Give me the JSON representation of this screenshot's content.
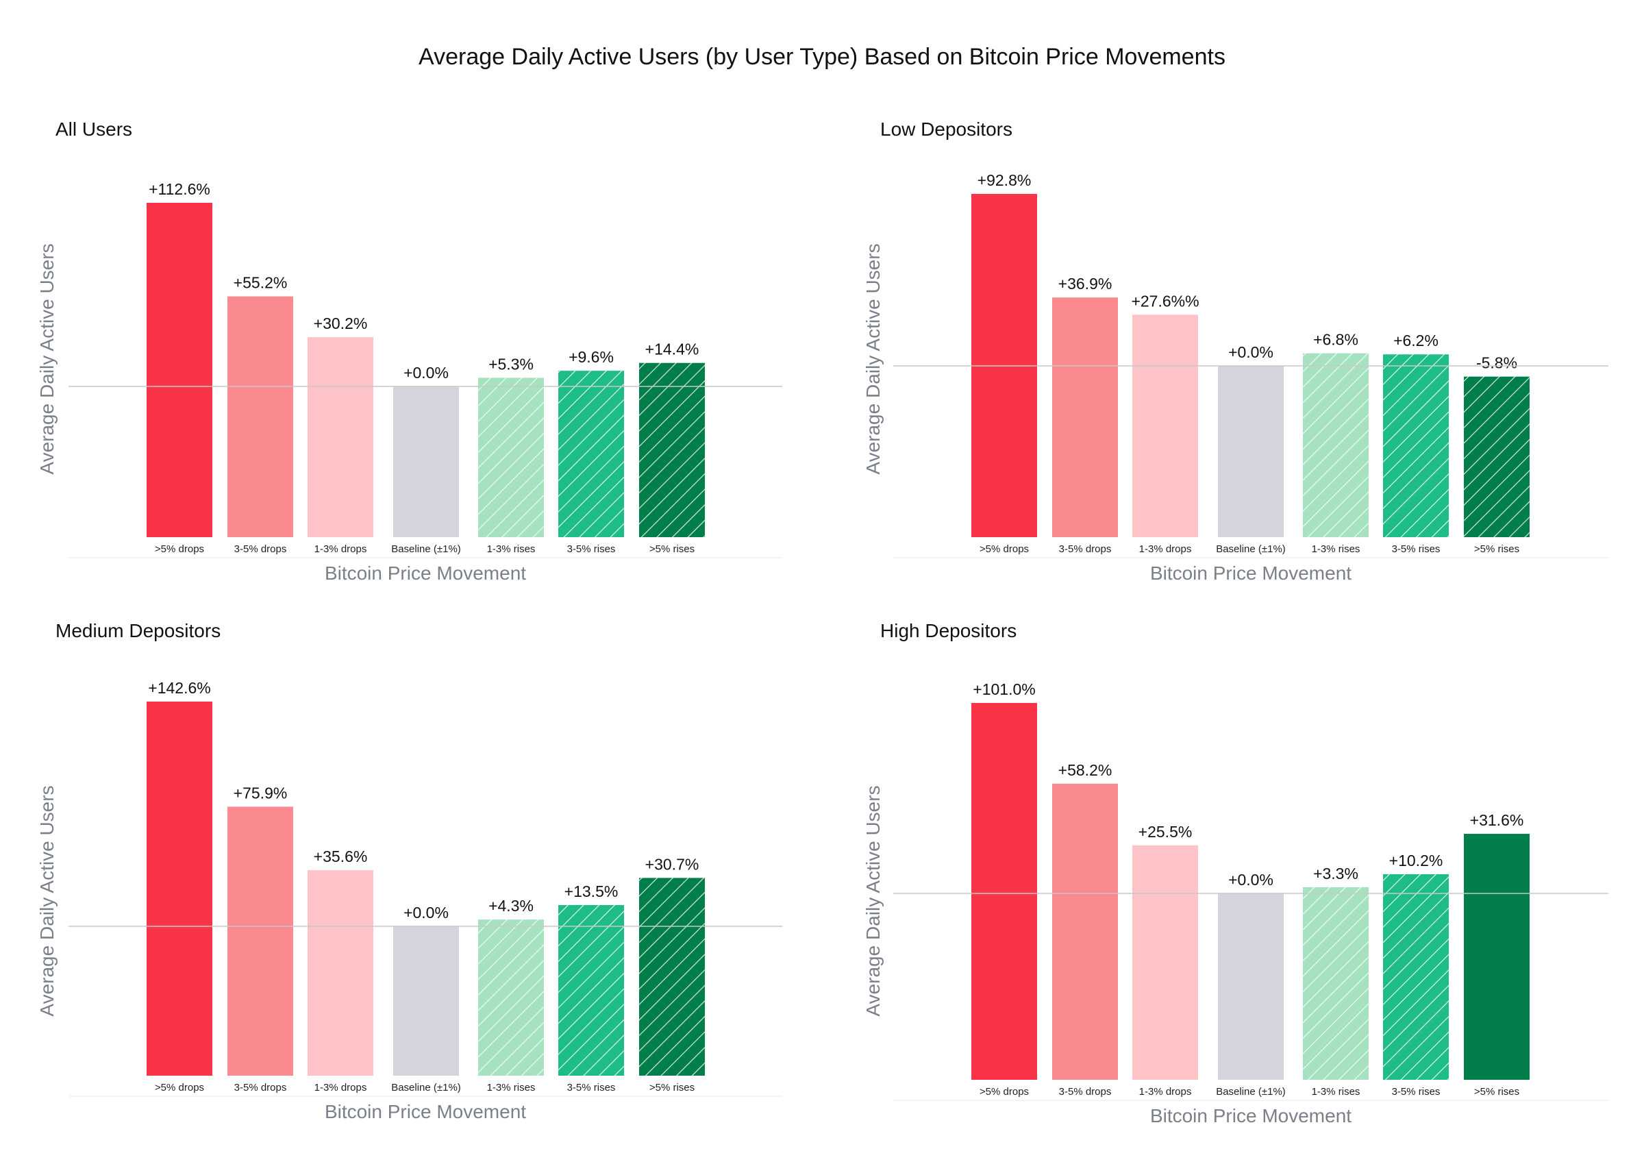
{
  "title": "Average Daily Active Users (by User Type) Based on Bitcoin Price Movements",
  "colors": {
    "drop_5": "#fa3448",
    "drop_3_5": "#fa8a90",
    "drop_1_3": "#fec3c6",
    "baseline": "#d4d4dd",
    "rise_1_3": "#a6e2c0",
    "rise_3_5": "#1ebd85",
    "rise_5": "#017e4a",
    "reference_line": "#c8c8c8",
    "axis_title": "#7a7f89"
  },
  "chart_data": [
    {
      "type": "bar",
      "title": "All Users",
      "xlabel": "Bitcoin Price Movement",
      "ylabel": "Average Daily Active Users",
      "categories": [
        ">5% drops",
        "3-5% drops",
        "1-3% drops",
        "Baseline (±1%)",
        "1-3% rises",
        "3-5% rises",
        ">5% rises"
      ],
      "values": [
        112.6,
        55.2,
        30.2,
        0.0,
        5.3,
        9.6,
        14.4
      ],
      "labels": [
        "+112.6%",
        "+55.2%",
        "+30.2%",
        "+0.0%",
        "+5.3%",
        "+9.6%",
        "+14.4%"
      ],
      "hatched": [
        false,
        false,
        false,
        false,
        true,
        true,
        true
      ]
    },
    {
      "type": "bar",
      "title": "Low Depositors",
      "xlabel": "Bitcoin Price Movement",
      "ylabel": "Average Daily Active Users",
      "categories": [
        ">5% drops",
        "3-5% drops",
        "1-3% drops",
        "Baseline (±1%)",
        "1-3% rises",
        "3-5% rises",
        ">5% rises"
      ],
      "values": [
        92.8,
        36.9,
        27.6,
        0.0,
        6.8,
        6.2,
        -5.8
      ],
      "labels": [
        "+92.8%",
        "+36.9%",
        "+27.6%%",
        "+0.0%",
        "+6.8%",
        "+6.2%",
        "-5.8%"
      ],
      "hatched": [
        false,
        false,
        false,
        false,
        true,
        true,
        true
      ]
    },
    {
      "type": "bar",
      "title": "Medium Depositors",
      "xlabel": "Bitcoin Price Movement",
      "ylabel": "Average Daily Active Users",
      "categories": [
        ">5% drops",
        "3-5% drops",
        "1-3% drops",
        "Baseline (±1%)",
        "1-3% rises",
        "3-5% rises",
        ">5% rises"
      ],
      "values": [
        142.6,
        75.9,
        35.6,
        0.0,
        4.3,
        13.5,
        30.7
      ],
      "labels": [
        "+142.6%",
        "+75.9%",
        "+35.6%",
        "+0.0%",
        "+4.3%",
        "+13.5%",
        "+30.7%"
      ],
      "hatched": [
        false,
        false,
        false,
        false,
        true,
        true,
        true
      ]
    },
    {
      "type": "bar",
      "title": "High Depositors",
      "xlabel": "Bitcoin Price Movement",
      "ylabel": "Average Daily Active Users",
      "categories": [
        ">5% drops",
        "3-5% drops",
        "1-3% drops",
        "Baseline (±1%)",
        "1-3% rises",
        "3-5% rises",
        ">5% rises"
      ],
      "values": [
        101.0,
        58.2,
        25.5,
        0.0,
        3.3,
        10.2,
        31.6
      ],
      "labels": [
        "+101.0%",
        "+58.2%",
        "+25.5%",
        "+0.0%",
        "+3.3%",
        "+10.2%",
        "+31.6%"
      ],
      "hatched": [
        false,
        false,
        false,
        false,
        true,
        true,
        false
      ]
    }
  ]
}
